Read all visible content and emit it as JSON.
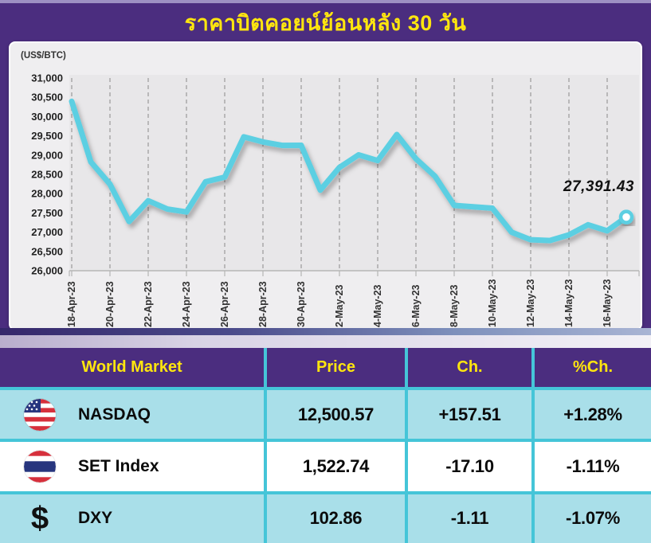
{
  "title": "ราคาบิตคอยน์ย้อนหลัง 30 วัน",
  "chart": {
    "unit_label": "(US$/BTC)",
    "end_label": "27,391.43"
  },
  "chart_data": {
    "type": "line",
    "title": "ราคาบิตคอยน์ย้อนหลัง 30 วัน",
    "ylabel": "(US$/BTC)",
    "ylim": [
      26000,
      31000
    ],
    "y_tick_step": 500,
    "x_tick_labels": [
      "18-Apr-23",
      "20-Apr-23",
      "22-Apr-23",
      "24-Apr-23",
      "26-Apr-23",
      "28-Apr-23",
      "30-Apr-23",
      "2-May-23",
      "4-May-23",
      "6-May-23",
      "8-May-23",
      "10-May-23",
      "12-May-23",
      "14-May-23",
      "16-May-23"
    ],
    "values": [
      30394,
      28823,
      28245,
      27276,
      27817,
      27600,
      27525,
      28307,
      28427,
      29473,
      29340,
      29252,
      29255,
      28091,
      28680,
      29006,
      28858,
      29534,
      28904,
      28450,
      27694,
      27658,
      27621,
      27000,
      26804,
      26784,
      26930,
      27192,
      27036,
      27391.43
    ],
    "last_value": 27391.43,
    "line_color": "#5bcfe2",
    "grid": "vertical-dashed",
    "legend": "none"
  },
  "table": {
    "headers": [
      "World Market",
      "Price",
      "Ch.",
      "%Ch."
    ],
    "rows": [
      {
        "icon": "us-flag-icon",
        "name": "NASDAQ",
        "price": "12,500.57",
        "change": "+157.51",
        "pct_change": "+1.28%"
      },
      {
        "icon": "thailand-flag-icon",
        "name": "SET Index",
        "price": "1,522.74",
        "change": "-17.10",
        "pct_change": "-1.11%"
      },
      {
        "icon": "dollar-icon",
        "name": "DXY",
        "price": "102.86",
        "change": "-1.11",
        "pct_change": "-1.07%"
      }
    ]
  },
  "colors": {
    "purple": "#4b2d7f",
    "yellow": "#ffe60e",
    "line_cyan": "#5bcfe2",
    "row_cyan": "#a9dfe9",
    "divider_cyan": "#45c5d8",
    "plot_bg": "#e8e7e9"
  }
}
